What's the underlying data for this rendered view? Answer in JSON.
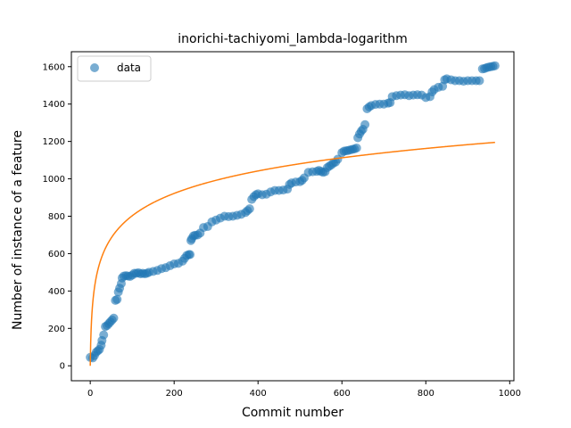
{
  "chart_data": {
    "type": "scatter",
    "title": "inorichi-tachiyomi_lambda-logarithm",
    "xlabel": "Commit number",
    "ylabel": "Number of instance of a feature",
    "xlim": [
      -45,
      1010
    ],
    "ylim": [
      -80,
      1680
    ],
    "xticks": [
      0,
      200,
      400,
      600,
      800,
      1000
    ],
    "yticks": [
      0,
      200,
      400,
      600,
      800,
      1000,
      1200,
      1400,
      1600
    ],
    "grid": false,
    "legend": {
      "placement": "top-left",
      "entries": [
        "data"
      ]
    },
    "series": [
      {
        "name": "data",
        "kind": "scatter",
        "color": "#1f77b4",
        "points": [
          [
            0,
            45
          ],
          [
            6,
            42
          ],
          [
            10,
            55
          ],
          [
            14,
            72
          ],
          [
            18,
            80
          ],
          [
            22,
            88
          ],
          [
            26,
            110
          ],
          [
            28,
            135
          ],
          [
            32,
            165
          ],
          [
            36,
            210
          ],
          [
            40,
            215
          ],
          [
            44,
            225
          ],
          [
            48,
            235
          ],
          [
            52,
            245
          ],
          [
            56,
            255
          ],
          [
            60,
            350
          ],
          [
            64,
            355
          ],
          [
            67,
            395
          ],
          [
            70,
            415
          ],
          [
            74,
            440
          ],
          [
            76,
            470
          ],
          [
            80,
            480
          ],
          [
            85,
            482
          ],
          [
            90,
            480
          ],
          [
            95,
            478
          ],
          [
            100,
            485
          ],
          [
            105,
            495
          ],
          [
            110,
            495
          ],
          [
            115,
            498
          ],
          [
            120,
            492
          ],
          [
            125,
            495
          ],
          [
            130,
            492
          ],
          [
            135,
            495
          ],
          [
            140,
            500
          ],
          [
            150,
            505
          ],
          [
            160,
            510
          ],
          [
            170,
            520
          ],
          [
            180,
            525
          ],
          [
            190,
            535
          ],
          [
            200,
            545
          ],
          [
            210,
            548
          ],
          [
            220,
            560
          ],
          [
            225,
            575
          ],
          [
            230,
            590
          ],
          [
            235,
            595
          ],
          [
            238,
            595
          ],
          [
            240,
            670
          ],
          [
            242,
            680
          ],
          [
            246,
            695
          ],
          [
            250,
            698
          ],
          [
            256,
            700
          ],
          [
            262,
            710
          ],
          [
            270,
            740
          ],
          [
            280,
            745
          ],
          [
            290,
            770
          ],
          [
            300,
            780
          ],
          [
            310,
            790
          ],
          [
            320,
            800
          ],
          [
            330,
            798
          ],
          [
            340,
            800
          ],
          [
            350,
            805
          ],
          [
            360,
            810
          ],
          [
            370,
            820
          ],
          [
            375,
            830
          ],
          [
            380,
            840
          ],
          [
            385,
            890
          ],
          [
            390,
            905
          ],
          [
            395,
            915
          ],
          [
            400,
            920
          ],
          [
            410,
            915
          ],
          [
            420,
            918
          ],
          [
            430,
            930
          ],
          [
            440,
            938
          ],
          [
            450,
            938
          ],
          [
            460,
            940
          ],
          [
            470,
            945
          ],
          [
            475,
            970
          ],
          [
            480,
            978
          ],
          [
            490,
            983
          ],
          [
            500,
            985
          ],
          [
            505,
            992
          ],
          [
            510,
            1005
          ],
          [
            520,
            1035
          ],
          [
            530,
            1038
          ],
          [
            540,
            1040
          ],
          [
            545,
            1045
          ],
          [
            550,
            1040
          ],
          [
            555,
            1035
          ],
          [
            560,
            1038
          ],
          [
            565,
            1060
          ],
          [
            570,
            1068
          ],
          [
            575,
            1075
          ],
          [
            580,
            1085
          ],
          [
            585,
            1090
          ],
          [
            590,
            1105
          ],
          [
            600,
            1140
          ],
          [
            605,
            1148
          ],
          [
            610,
            1150
          ],
          [
            615,
            1152
          ],
          [
            620,
            1155
          ],
          [
            625,
            1158
          ],
          [
            630,
            1160
          ],
          [
            635,
            1165
          ],
          [
            638,
            1220
          ],
          [
            642,
            1240
          ],
          [
            646,
            1255
          ],
          [
            650,
            1265
          ],
          [
            655,
            1290
          ],
          [
            660,
            1375
          ],
          [
            665,
            1385
          ],
          [
            670,
            1392
          ],
          [
            680,
            1398
          ],
          [
            690,
            1400
          ],
          [
            700,
            1400
          ],
          [
            710,
            1405
          ],
          [
            715,
            1408
          ],
          [
            720,
            1440
          ],
          [
            730,
            1445
          ],
          [
            740,
            1448
          ],
          [
            750,
            1450
          ],
          [
            760,
            1445
          ],
          [
            770,
            1448
          ],
          [
            780,
            1450
          ],
          [
            790,
            1448
          ],
          [
            800,
            1435
          ],
          [
            810,
            1440
          ],
          [
            815,
            1465
          ],
          [
            820,
            1478
          ],
          [
            830,
            1490
          ],
          [
            840,
            1495
          ],
          [
            845,
            1530
          ],
          [
            850,
            1535
          ],
          [
            860,
            1530
          ],
          [
            870,
            1525
          ],
          [
            880,
            1525
          ],
          [
            890,
            1522
          ],
          [
            900,
            1525
          ],
          [
            910,
            1525
          ],
          [
            920,
            1525
          ],
          [
            928,
            1525
          ],
          [
            935,
            1588
          ],
          [
            940,
            1590
          ],
          [
            945,
            1595
          ],
          [
            950,
            1598
          ],
          [
            955,
            1600
          ],
          [
            960,
            1602
          ],
          [
            965,
            1605
          ]
        ]
      },
      {
        "name": "",
        "kind": "line",
        "color": "#ff7f0e",
        "function": "log-fit",
        "x_range": [
          0,
          965
        ],
        "fit_points": [
          [
            0,
            0
          ],
          [
            1,
            140
          ],
          [
            10,
            465
          ],
          [
            50,
            710
          ],
          [
            100,
            815
          ],
          [
            200,
            925
          ],
          [
            300,
            990
          ],
          [
            400,
            1035
          ],
          [
            500,
            1070
          ],
          [
            600,
            1100
          ],
          [
            700,
            1125
          ],
          [
            800,
            1150
          ],
          [
            900,
            1175
          ],
          [
            965,
            1195
          ]
        ]
      }
    ]
  }
}
